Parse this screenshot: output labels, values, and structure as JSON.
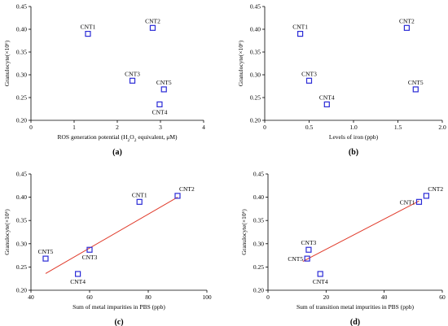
{
  "chart_data": [
    {
      "type": "scatter",
      "panel_label": "(a)",
      "ylabel": "Granulocyte(×10⁶)",
      "xlabel_parts": [
        {
          "text": "ROS generation potential (H",
          "sub": false
        },
        {
          "text": "2",
          "sub": true
        },
        {
          "text": "O",
          "sub": false
        },
        {
          "text": "2",
          "sub": true
        },
        {
          "text": " equivalent, μM)",
          "sub": false
        }
      ],
      "xlim": [
        0,
        4
      ],
      "ylim": [
        0.2,
        0.45
      ],
      "xticks": [
        0,
        1,
        2,
        3,
        4
      ],
      "xtick_labels": [
        "0",
        "1",
        "2",
        "3",
        "4"
      ],
      "yticks": [
        0.2,
        0.25,
        0.3,
        0.35,
        0.4,
        0.45
      ],
      "ytick_labels": [
        "0.20",
        "0.25",
        "0.30",
        "0.35",
        "0.40",
        "0.45"
      ],
      "points": [
        {
          "label": "CNT1",
          "x": 1.32,
          "y": 0.39,
          "label_pos": "above"
        },
        {
          "label": "CNT2",
          "x": 2.82,
          "y": 0.403,
          "label_pos": "above"
        },
        {
          "label": "CNT3",
          "x": 2.35,
          "y": 0.287,
          "label_pos": "above"
        },
        {
          "label": "CNT5",
          "x": 3.08,
          "y": 0.268,
          "label_pos": "above"
        },
        {
          "label": "CNT4",
          "x": 2.98,
          "y": 0.235,
          "label_pos": "below"
        }
      ],
      "trendline": null
    },
    {
      "type": "scatter",
      "panel_label": "(b)",
      "ylabel": "Granulocyte(×10⁶)",
      "xlabel_parts": [
        {
          "text": "Levels of iron (ppb)",
          "sub": false
        }
      ],
      "xlim": [
        0,
        2.0
      ],
      "ylim": [
        0.2,
        0.45
      ],
      "xticks": [
        0,
        0.5,
        1.0,
        1.5,
        2.0
      ],
      "xtick_labels": [
        "0",
        "0.5",
        "1.0",
        "1.5",
        "2.0"
      ],
      "yticks": [
        0.2,
        0.25,
        0.3,
        0.35,
        0.4,
        0.45
      ],
      "ytick_labels": [
        "0.20",
        "0.25",
        "0.30",
        "0.35",
        "0.40",
        "0.45"
      ],
      "points": [
        {
          "label": "CNT1",
          "x": 0.4,
          "y": 0.39,
          "label_pos": "above"
        },
        {
          "label": "CNT2",
          "x": 1.6,
          "y": 0.403,
          "label_pos": "above"
        },
        {
          "label": "CNT3",
          "x": 0.5,
          "y": 0.287,
          "label_pos": "above"
        },
        {
          "label": "CNT4",
          "x": 0.7,
          "y": 0.235,
          "label_pos": "above"
        },
        {
          "label": "CNT5",
          "x": 1.7,
          "y": 0.268,
          "label_pos": "above"
        }
      ],
      "trendline": null
    },
    {
      "type": "scatter",
      "panel_label": "(c)",
      "ylabel": "Granulocyte(×10⁶)",
      "xlabel_parts": [
        {
          "text": "Sum of metal impurities in PBS (ppb)",
          "sub": false
        }
      ],
      "xlim": [
        40,
        100
      ],
      "ylim": [
        0.2,
        0.45
      ],
      "xticks": [
        40,
        60,
        80,
        100
      ],
      "xtick_labels": [
        "40",
        "60",
        "80",
        "100"
      ],
      "yticks": [
        0.2,
        0.25,
        0.3,
        0.35,
        0.4,
        0.45
      ],
      "ytick_labels": [
        "0.20",
        "0.25",
        "0.30",
        "0.35",
        "0.40",
        "0.45"
      ],
      "points": [
        {
          "label": "CNT1",
          "x": 77,
          "y": 0.39,
          "label_pos": "above"
        },
        {
          "label": "CNT2",
          "x": 90,
          "y": 0.403,
          "label_pos": "above-right"
        },
        {
          "label": "CNT3",
          "x": 60,
          "y": 0.287,
          "label_pos": "below"
        },
        {
          "label": "CNT5",
          "x": 45,
          "y": 0.268,
          "label_pos": "above"
        },
        {
          "label": "CNT4",
          "x": 56,
          "y": 0.235,
          "label_pos": "below"
        }
      ],
      "trendline": {
        "x": [
          45,
          90
        ],
        "y": [
          0.236,
          0.4
        ]
      }
    },
    {
      "type": "scatter",
      "panel_label": "(d)",
      "ylabel": "Granulocyte(×10⁶)",
      "xlabel_parts": [
        {
          "text": "Sum of transition metal impurities in PBS (ppb)",
          "sub": false
        }
      ],
      "xlim": [
        0,
        60
      ],
      "ylim": [
        0.2,
        0.45
      ],
      "xticks": [
        0,
        20,
        40,
        60
      ],
      "xtick_labels": [
        "0",
        "20",
        "40",
        "60"
      ],
      "yticks": [
        0.2,
        0.25,
        0.3,
        0.35,
        0.4,
        0.45
      ],
      "ytick_labels": [
        "0.20",
        "0.25",
        "0.30",
        "0.35",
        "0.40",
        "0.45"
      ],
      "points": [
        {
          "label": "CNT1",
          "x": 52,
          "y": 0.39,
          "label_pos": "left"
        },
        {
          "label": "CNT2",
          "x": 54.5,
          "y": 0.403,
          "label_pos": "above-right"
        },
        {
          "label": "CNT3",
          "x": 14,
          "y": 0.287,
          "label_pos": "above"
        },
        {
          "label": "CNT5",
          "x": 13.5,
          "y": 0.268,
          "label_pos": "left"
        },
        {
          "label": "CNT4",
          "x": 18,
          "y": 0.235,
          "label_pos": "below"
        }
      ],
      "trendline": {
        "x": [
          12,
          52
        ],
        "y": [
          0.262,
          0.392
        ]
      }
    }
  ]
}
